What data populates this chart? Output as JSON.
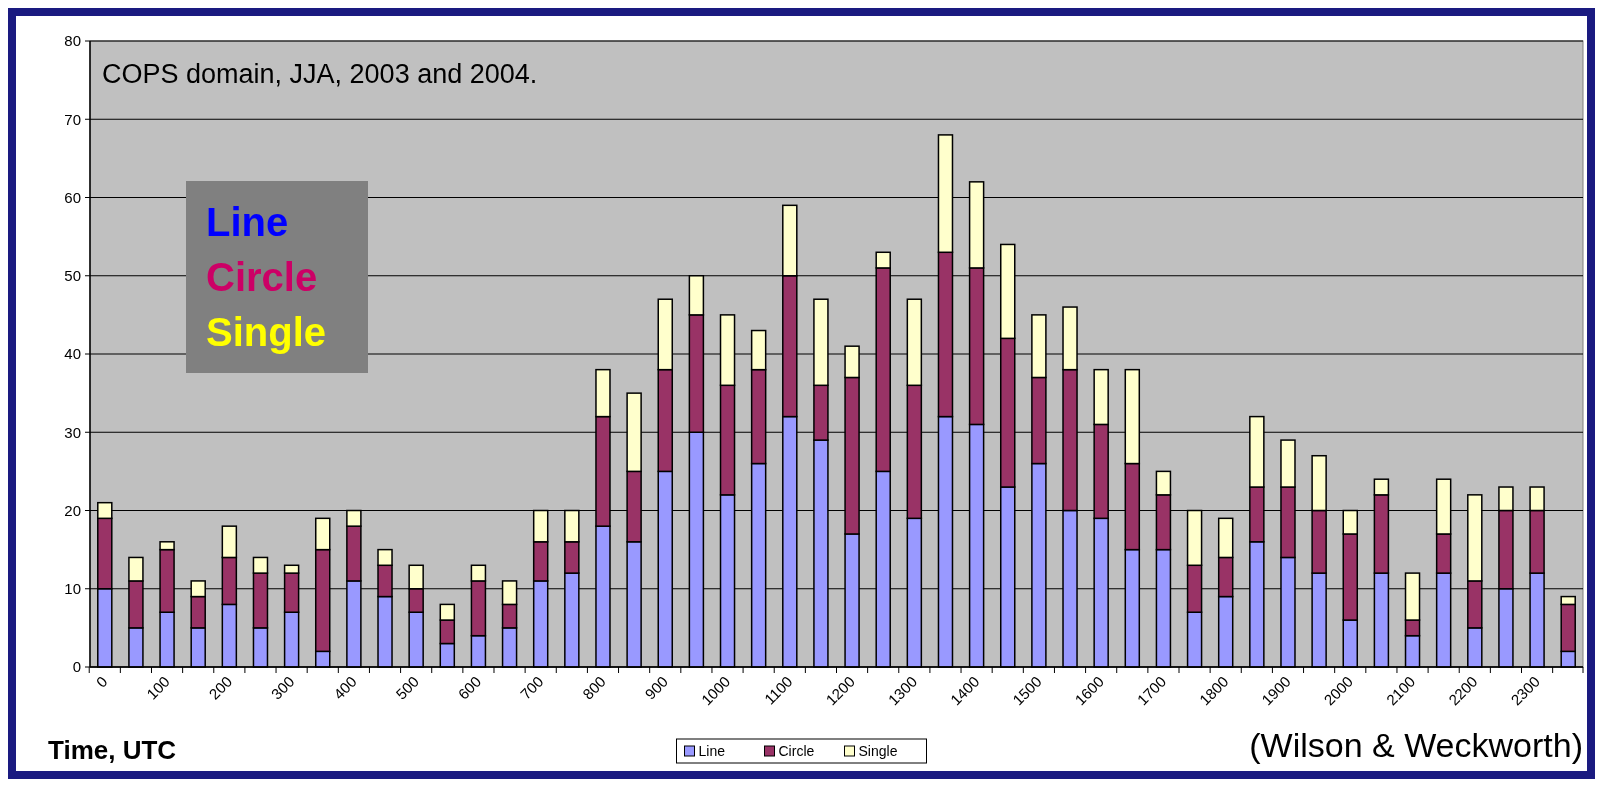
{
  "chart_data": {
    "type": "bar",
    "stacked": true,
    "xlabel": "Time, UTC",
    "annotations": [
      "COPS domain, JJA, 2003 and 2004.",
      "(Wilson & Weckworth)"
    ],
    "categories": [
      "0",
      null,
      "100",
      null,
      "200",
      null,
      "300",
      null,
      "400",
      null,
      "500",
      null,
      "600",
      null,
      "700",
      null,
      "800",
      null,
      "900",
      null,
      "1000",
      null,
      "1100",
      null,
      "1200",
      null,
      "1300",
      null,
      "1400",
      null,
      "1500",
      null,
      "1600",
      null,
      "1700",
      null,
      "1800",
      null,
      "1900",
      null,
      "2000",
      null,
      "2100",
      null,
      "2200",
      null,
      "2300",
      null
    ],
    "series": [
      {
        "name": "Line",
        "color": "#9999ff",
        "values": [
          10,
          5,
          7,
          5,
          8,
          5,
          7,
          2,
          11,
          9,
          7,
          3,
          4,
          5,
          11,
          12,
          18,
          16,
          25,
          30,
          22,
          26,
          32,
          29,
          17,
          25,
          19,
          32,
          31,
          23,
          26,
          20,
          19,
          15,
          15,
          7,
          9,
          16,
          14,
          12,
          6,
          12,
          4,
          12,
          5,
          10,
          12,
          2
        ]
      },
      {
        "name": "Circle",
        "color": "#993366",
        "values": [
          9,
          6,
          8,
          4,
          6,
          7,
          5,
          13,
          7,
          4,
          3,
          3,
          7,
          3,
          5,
          4,
          14,
          9,
          13,
          15,
          14,
          12,
          18,
          7,
          20,
          26,
          17,
          21,
          20,
          19,
          11,
          18,
          12,
          11,
          7,
          6,
          5,
          7,
          9,
          8,
          11,
          10,
          2,
          5,
          6,
          10,
          8,
          6
        ]
      },
      {
        "name": "Single",
        "color": "#ffffcc",
        "values": [
          2,
          3,
          1,
          2,
          4,
          2,
          1,
          4,
          2,
          2,
          3,
          2,
          2,
          3,
          4,
          4,
          6,
          10,
          9,
          5,
          9,
          5,
          9,
          11,
          4,
          2,
          11,
          15,
          11,
          12,
          8,
          8,
          7,
          12,
          3,
          7,
          5,
          9,
          6,
          7,
          3,
          2,
          6,
          7,
          11,
          3,
          3,
          1
        ]
      }
    ],
    "ylim": [
      0,
      80
    ],
    "yticks": [
      0,
      10,
      20,
      30,
      40,
      50,
      60,
      70,
      80
    ],
    "grid": "y",
    "legend": "bottom"
  }
}
